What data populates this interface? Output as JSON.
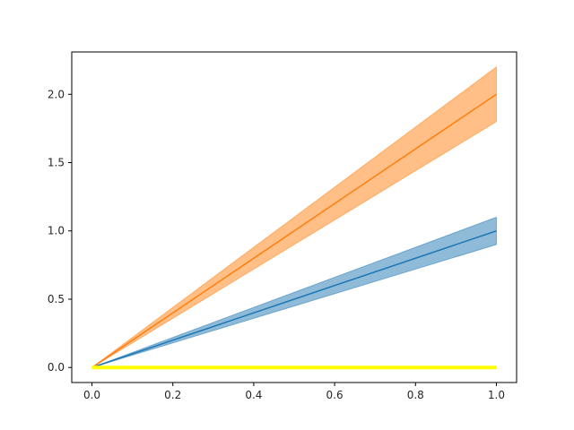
{
  "chart_data": {
    "type": "line",
    "x": [
      0.0,
      0.25,
      0.5,
      0.75,
      1.0
    ],
    "series": [
      {
        "values": [
          0.0,
          0.25,
          0.5,
          0.75,
          1.0
        ],
        "lower": [
          0.0,
          0.225,
          0.45,
          0.675,
          0.9
        ],
        "upper": [
          0.0,
          0.275,
          0.55,
          0.825,
          1.1
        ],
        "line_color": "#1f77b4",
        "band_color": "#1f77b4",
        "band_opacity": 0.5
      },
      {
        "values": [
          0.0,
          0.5,
          1.0,
          1.5,
          2.0
        ],
        "lower": [
          0.0,
          0.45,
          0.9,
          1.35,
          1.8
        ],
        "upper": [
          0.0,
          0.55,
          1.1,
          1.65,
          2.2
        ],
        "line_color": "#ff7f0e",
        "band_color": "#ff7f0e",
        "band_opacity": 0.5
      },
      {
        "values": [
          0.0,
          0.0,
          0.0,
          0.0,
          0.0
        ],
        "line_color": "#ffff00",
        "thick": true
      }
    ],
    "xlim": [
      -0.05,
      1.05
    ],
    "ylim": [
      -0.11,
      2.31
    ],
    "xticks": [
      "0.0",
      "0.2",
      "0.4",
      "0.6",
      "0.8",
      "1.0"
    ],
    "yticks": [
      "0.0",
      "0.5",
      "1.0",
      "1.5",
      "2.0"
    ],
    "xlabel": "",
    "ylabel": "",
    "title": "",
    "grid": false,
    "legend": false
  }
}
